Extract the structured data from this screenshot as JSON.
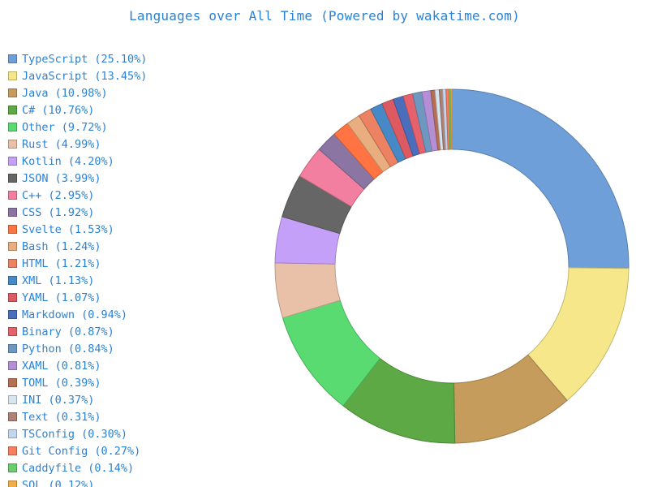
{
  "chart_data": {
    "type": "pie",
    "variant": "donut",
    "title": "Languages over All Time (Powered by wakatime.com)",
    "legend_position": "left",
    "slices": [
      {
        "label": "TypeScript",
        "value": 25.1,
        "legend": "TypeScript (25.10%)",
        "color": "#6f9fd8"
      },
      {
        "label": "JavaScript",
        "value": 13.45,
        "legend": "JavaScript (13.45%)",
        "color": "#f5e78a"
      },
      {
        "label": "Java",
        "value": 10.98,
        "legend": "Java (10.98%)",
        "color": "#c69c5c"
      },
      {
        "label": "C#",
        "value": 10.76,
        "legend": "C# (10.76%)",
        "color": "#5ca946"
      },
      {
        "label": "Other",
        "value": 9.72,
        "legend": "Other (9.72%)",
        "color": "#5adb72"
      },
      {
        "label": "Rust",
        "value": 4.99,
        "legend": "Rust (4.99%)",
        "color": "#e8c1a8"
      },
      {
        "label": "Kotlin",
        "value": 4.2,
        "legend": "Kotlin (4.20%)",
        "color": "#c4a0f8"
      },
      {
        "label": "JSON",
        "value": 3.99,
        "legend": "JSON (3.99%)",
        "color": "#666666"
      },
      {
        "label": "C++",
        "value": 2.95,
        "legend": "C++ (2.95%)",
        "color": "#f27fa0"
      },
      {
        "label": "CSS",
        "value": 1.92,
        "legend": "CSS (1.92%)",
        "color": "#8a75a3"
      },
      {
        "label": "Svelte",
        "value": 1.53,
        "legend": "Svelte (1.53%)",
        "color": "#ff7442"
      },
      {
        "label": "Bash",
        "value": 1.24,
        "legend": "Bash (1.24%)",
        "color": "#e8ae80"
      },
      {
        "label": "HTML",
        "value": 1.21,
        "legend": "HTML (1.21%)",
        "color": "#ec8262"
      },
      {
        "label": "XML",
        "value": 1.13,
        "legend": "XML (1.13%)",
        "color": "#4789c6"
      },
      {
        "label": "YAML",
        "value": 1.07,
        "legend": "YAML (1.07%)",
        "color": "#dd5a62"
      },
      {
        "label": "Markdown",
        "value": 0.94,
        "legend": "Markdown (0.94%)",
        "color": "#4a6ebb"
      },
      {
        "label": "Binary",
        "value": 0.87,
        "legend": "Binary (0.87%)",
        "color": "#e5626c"
      },
      {
        "label": "Python",
        "value": 0.84,
        "legend": "Python (0.84%)",
        "color": "#6e98bf"
      },
      {
        "label": "XAML",
        "value": 0.81,
        "legend": "XAML (0.81%)",
        "color": "#b48fd6"
      },
      {
        "label": "TOML",
        "value": 0.39,
        "legend": "TOML (0.39%)",
        "color": "#b57054"
      },
      {
        "label": "INI",
        "value": 0.37,
        "legend": "INI (0.37%)",
        "color": "#d8e4ee"
      },
      {
        "label": "Text",
        "value": 0.31,
        "legend": "Text (0.31%)",
        "color": "#ad8275"
      },
      {
        "label": "TSConfig",
        "value": 0.3,
        "legend": "TSConfig (0.30%)",
        "color": "#c3d5ef"
      },
      {
        "label": "Git Config",
        "value": 0.27,
        "legend": "Git Config (0.27%)",
        "color": "#f67e5e"
      },
      {
        "label": "Caddyfile",
        "value": 0.14,
        "legend": "Caddyfile (0.14%)",
        "color": "#6acd6e"
      },
      {
        "label": "SQL",
        "value": 0.12,
        "legend": "SQL (0.12%)",
        "color": "#f3ad48"
      }
    ]
  }
}
